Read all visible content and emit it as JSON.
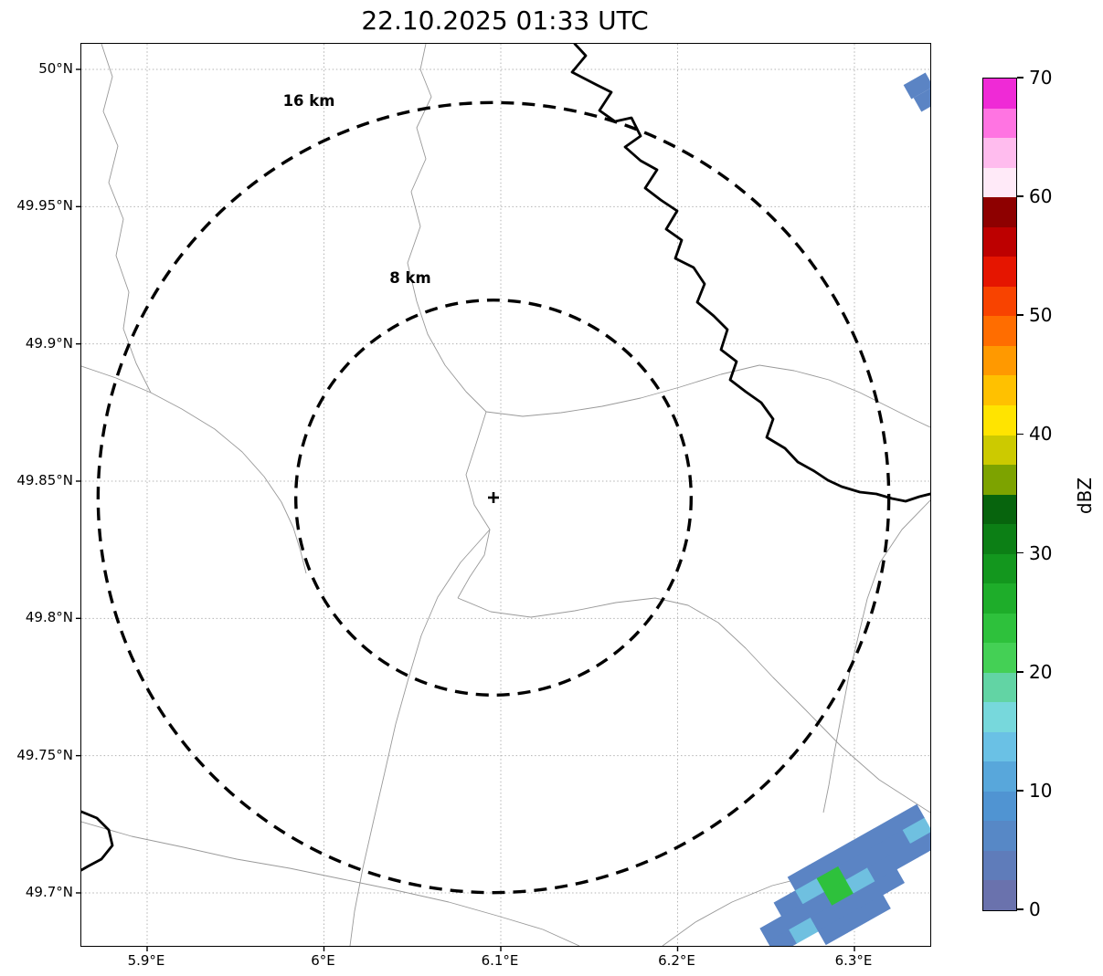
{
  "title": "22.10.2025 01:33 UTC",
  "chart_data": {
    "type": "heatmap",
    "title": "22.10.2025 01:33 UTC",
    "xlabel": "",
    "ylabel": "",
    "grid": true,
    "x_tick_labels": [
      "5.9°E",
      "6°E",
      "6.1°E",
      "6.2°E",
      "6.3°E"
    ],
    "y_tick_labels": [
      "50°N",
      "49.95°N",
      "49.9°N",
      "49.85°N",
      "49.8°N",
      "49.75°N",
      "49.7°N"
    ],
    "xlim": [
      5.863,
      6.343
    ],
    "ylim": [
      49.681,
      50.01
    ],
    "radar_center": {
      "lon": 6.096,
      "lat": 49.844,
      "marker": "+"
    },
    "range_rings": [
      {
        "label": "16 km",
        "radius_km": 16
      },
      {
        "label": "8 km",
        "radius_km": 8
      }
    ],
    "colorbar": {
      "label": "dBZ",
      "min": 0,
      "max": 70,
      "tick_values": [
        0,
        10,
        20,
        30,
        40,
        50,
        60,
        70
      ],
      "band_colors": [
        "#6a72ad",
        "#5f7cba",
        "#5788c6",
        "#5094d2",
        "#58a7db",
        "#6ac1e5",
        "#77d8dc",
        "#62d4a4",
        "#44d055",
        "#2ec13c",
        "#1ead2a",
        "#13971e",
        "#0c7f15",
        "#07640d",
        "#7da300",
        "#ccca00",
        "#ffe400",
        "#ffc100",
        "#ff9900",
        "#ff6d00",
        "#f84300",
        "#e51500",
        "#bd0000",
        "#8e0000",
        "#ffeaf8",
        "#ffbcee",
        "#ff74e2",
        "#ef2ad6"
      ]
    },
    "echoes": {
      "palette": {
        "b": "#5b84c4",
        "l": "#6fc0e0",
        "g": "#2ec13c"
      },
      "band_cells": [
        {
          "i": 2,
          "j": 0,
          "c": "b"
        },
        {
          "i": 3,
          "j": 0,
          "c": "b"
        },
        {
          "i": 4,
          "j": 0,
          "c": "b"
        },
        {
          "i": 5,
          "j": 0,
          "c": "b"
        },
        {
          "i": 6,
          "j": 0,
          "c": "b"
        },
        {
          "i": 7,
          "j": 0,
          "c": "b"
        },
        {
          "i": 1,
          "j": 1,
          "c": "b"
        },
        {
          "i": 2,
          "j": 1,
          "c": "l"
        },
        {
          "i": 3,
          "j": 1,
          "c": "g"
        },
        {
          "i": 4,
          "j": 1,
          "c": "b"
        },
        {
          "i": 5,
          "j": 1,
          "c": "b"
        },
        {
          "i": 6,
          "j": 1,
          "c": "b"
        },
        {
          "i": 7,
          "j": 1,
          "c": "l"
        },
        {
          "i": 0,
          "j": 2,
          "c": "b"
        },
        {
          "i": 1,
          "j": 2,
          "c": "b"
        },
        {
          "i": 2,
          "j": 2,
          "c": "b"
        },
        {
          "i": 3,
          "j": 2,
          "c": "g"
        },
        {
          "i": 4,
          "j": 2,
          "c": "l"
        },
        {
          "i": 5,
          "j": 2,
          "c": "b"
        },
        {
          "i": 6,
          "j": 2,
          "c": "b"
        },
        {
          "i": 7,
          "j": 2,
          "c": "b"
        },
        {
          "i": 0,
          "j": 3,
          "c": "b"
        },
        {
          "i": 1,
          "j": 3,
          "c": "l"
        },
        {
          "i": 2,
          "j": 3,
          "c": "b"
        },
        {
          "i": 3,
          "j": 3,
          "c": "b"
        },
        {
          "i": 4,
          "j": 3,
          "c": "b"
        },
        {
          "i": 5,
          "j": 3,
          "c": "b"
        },
        {
          "i": 2,
          "j": 4,
          "c": "b"
        },
        {
          "i": 3,
          "j": 4,
          "c": "b"
        },
        {
          "i": 4,
          "j": 4,
          "c": "b"
        }
      ],
      "corner_cells": [
        {
          "x": 916,
          "y": 46,
          "c": "b"
        },
        {
          "x": 927,
          "y": 60,
          "c": "b"
        }
      ]
    },
    "map_layers": {
      "rivers": [
        "M540,0 L552,13 L537,31 L564,45 L580,53 L567,73 L584,85 L602,81 L612,101 L595,113 L612,128 L630,138 L617,158 L634,171 L652,183 L640,203 L657,215 L650,235 L670,245 L682,263 L674,283 L692,298 L707,313 L700,335 L717,348 L710,368 L727,381 L744,393 L757,411 L750,431 L770,443 L784,458 L802,468 L817,478 L832,485 L852,491 L870,493 L887,498 L902,501 L917,496 L929,493",
        "M0,841 L17,848 L30,861 L34,878 L22,893 L7,901 L0,905"
      ],
      "borders": [
        "M377,0 L371,28 L383,58 L367,92 L377,126 L361,162 L371,200 L357,240 L367,282 L379,318 L398,352 L421,381 L443,403",
        "M742,352 L700,362 L655,376 L612,388 L570,397 L525,404 L483,408 L443,403",
        "M742,352 L780,358 L818,368 L852,382 L884,398 L912,412 L929,420",
        "M443,403 L432,438 L421,472 L430,505 L447,532 L441,560 L425,584 L412,607",
        "M412,607 L448,622 L492,628 L540,621 L585,612 L628,607 L664,615 L697,634 L727,662 L757,694 L792,729 L832,770 L873,806 L929,842",
        "M447,532 L415,568 L390,606 L372,648 L358,695 L344,745 L332,798 L320,850 L308,903 L299,950 L294,988",
        "M0,353 L38,366 L76,382 L110,400 L146,422 L176,447 L200,474 L219,502 L232,530 L240,556 L246,580",
        "M22,0 L34,36 L24,74 L40,112 L30,152 L46,192 L38,232 L52,272 L46,312 L60,350 L76,382",
        "M0,852 L55,868 L112,880 L170,893 L228,903 L286,915 L344,927 L402,940 L455,955 L505,970 L545,988",
        "M636,988 L672,962 L712,940 L756,922 L804,910 L850,902 L893,890 L929,878",
        "M929,500 L898,532 L874,568 L860,608 L850,650 L840,692 L832,734 L824,776 L818,812 L812,842"
      ]
    }
  }
}
